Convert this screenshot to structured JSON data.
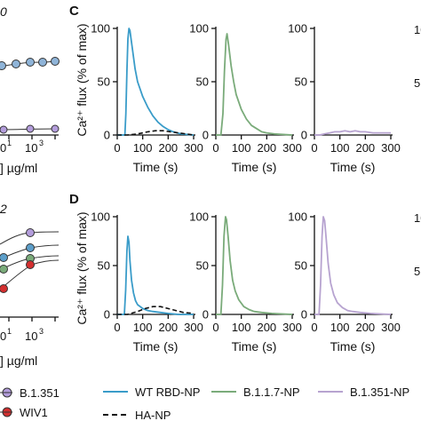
{
  "panel_letters": [
    "C",
    "D"
  ],
  "left_fragments": {
    "top_title_fragment": "0",
    "top_units": "] µg/ml",
    "bottom_title_fragment": "2",
    "bottom_units": "] µg/ml",
    "top_x_ticks": [
      "0",
      "1",
      "10",
      "3"
    ],
    "bottom_x_ticks": [
      "0",
      "1",
      "10",
      "3"
    ]
  },
  "left_legend": [
    {
      "label": "B.1.351",
      "marker": "circle",
      "color": "#b39ddb"
    },
    {
      "label": "WIV1",
      "marker": "circle",
      "color": "#d32f2f"
    }
  ],
  "right_edge_fragments": [
    "10",
    "5",
    "10",
    "5"
  ],
  "colors": {
    "wt": "#3a9cc9",
    "b117": "#7aab7a",
    "b1351": "#b7a3d0",
    "ha": "#111111",
    "axis": "#111111"
  },
  "chart_data": [
    {
      "panel": "C",
      "type": "line",
      "ylabel": "Ca²⁺ flux (% of max)",
      "xlabel": "Time (s)",
      "x_ticks": [
        0,
        100,
        200,
        300
      ],
      "y_ticks": [
        0,
        50,
        100
      ],
      "xlim": [
        0,
        300
      ],
      "ylim": [
        0,
        100
      ],
      "series": [
        {
          "name": "WT RBD-NP",
          "color_key": "wt",
          "x": [
            0,
            30,
            34,
            38,
            42,
            46,
            50,
            60,
            70,
            80,
            100,
            120,
            140,
            160,
            180,
            200,
            220,
            250,
            300
          ],
          "y": [
            0,
            0,
            20,
            60,
            90,
            100,
            98,
            80,
            62,
            50,
            36,
            26,
            18,
            12,
            8,
            5,
            3,
            1,
            0
          ]
        },
        {
          "name": "HA-NP",
          "color_key": "ha",
          "dash": true,
          "x": [
            0,
            40,
            80,
            120,
            150,
            180,
            210,
            240,
            270,
            300
          ],
          "y": [
            0,
            0,
            1,
            3,
            4,
            4,
            3,
            2,
            1,
            0
          ]
        }
      ]
    },
    {
      "panel": "C",
      "type": "line",
      "xlabel": "Time (s)",
      "x_ticks": [
        0,
        100,
        200,
        300
      ],
      "y_ticks": [
        0,
        50,
        100
      ],
      "xlim": [
        0,
        300
      ],
      "ylim": [
        0,
        100
      ],
      "series": [
        {
          "name": "B.1.1.7-NP",
          "color_key": "b117",
          "x": [
            0,
            20,
            28,
            34,
            40,
            44,
            50,
            60,
            70,
            80,
            100,
            120,
            140,
            160,
            180,
            200,
            230,
            300
          ],
          "y": [
            0,
            0,
            20,
            60,
            90,
            95,
            85,
            65,
            50,
            38,
            24,
            15,
            9,
            6,
            3,
            2,
            1,
            0
          ]
        }
      ]
    },
    {
      "panel": "C",
      "type": "line",
      "xlabel": "Time (s)",
      "x_ticks": [
        0,
        100,
        200,
        300
      ],
      "y_ticks": [
        0,
        50,
        100
      ],
      "xlim": [
        0,
        300
      ],
      "ylim": [
        0,
        100
      ],
      "series": [
        {
          "name": "B.1.351-NP",
          "color_key": "b1351",
          "x": [
            0,
            20,
            40,
            60,
            80,
            100,
            120,
            140,
            160,
            180,
            200,
            230,
            260,
            300
          ],
          "y": [
            0,
            0,
            1,
            2,
            3,
            3,
            4,
            3,
            4,
            3,
            3,
            2,
            2,
            2
          ]
        }
      ]
    },
    {
      "panel": "D",
      "type": "line",
      "ylabel": "Ca²⁺ flux (% of max)",
      "xlabel": "Time (s)",
      "x_ticks": [
        0,
        100,
        200,
        300
      ],
      "y_ticks": [
        0,
        50,
        100
      ],
      "xlim": [
        0,
        300
      ],
      "ylim": [
        0,
        100
      ],
      "series": [
        {
          "name": "WT RBD-NP",
          "color_key": "wt",
          "x": [
            0,
            28,
            33,
            38,
            42,
            46,
            50,
            56,
            64,
            72,
            80,
            100,
            120,
            140,
            170,
            200,
            240,
            300
          ],
          "y": [
            0,
            0,
            25,
            65,
            80,
            74,
            55,
            35,
            22,
            14,
            10,
            6,
            4,
            3,
            2,
            1,
            0,
            0
          ]
        },
        {
          "name": "HA-NP",
          "color_key": "ha",
          "dash": true,
          "x": [
            0,
            40,
            80,
            110,
            140,
            170,
            200,
            230,
            260,
            300
          ],
          "y": [
            0,
            0,
            3,
            6,
            8,
            8,
            6,
            4,
            2,
            1
          ]
        }
      ]
    },
    {
      "panel": "D",
      "type": "line",
      "xlabel": "Time (s)",
      "x_ticks": [
        0,
        100,
        200,
        300
      ],
      "y_ticks": [
        0,
        50,
        100
      ],
      "xlim": [
        0,
        300
      ],
      "ylim": [
        0,
        100
      ],
      "series": [
        {
          "name": "B.1.1.7-NP",
          "color_key": "b117",
          "x": [
            0,
            20,
            26,
            32,
            38,
            42,
            48,
            56,
            66,
            76,
            90,
            110,
            130,
            150,
            180,
            220,
            300
          ],
          "y": [
            0,
            0,
            30,
            80,
            100,
            97,
            80,
            55,
            35,
            24,
            15,
            8,
            5,
            3,
            2,
            1,
            0
          ]
        }
      ]
    },
    {
      "panel": "D",
      "type": "line",
      "xlabel": "Time (s)",
      "x_ticks": [
        0,
        100,
        200,
        300
      ],
      "y_ticks": [
        0,
        50,
        100
      ],
      "xlim": [
        0,
        300
      ],
      "ylim": [
        0,
        100
      ],
      "series": [
        {
          "name": "B.1.351-NP",
          "color_key": "b1351",
          "x": [
            0,
            18,
            24,
            30,
            35,
            40,
            46,
            54,
            64,
            76,
            90,
            110,
            130,
            150,
            180,
            220,
            300
          ],
          "y": [
            0,
            0,
            30,
            80,
            100,
            96,
            78,
            52,
            32,
            20,
            12,
            7,
            4,
            3,
            2,
            1,
            0
          ]
        }
      ]
    }
  ],
  "legend": [
    {
      "label": "WT RBD-NP",
      "color_key": "wt",
      "dash": false
    },
    {
      "label": "B.1.1.7-NP",
      "color_key": "b117",
      "dash": false
    },
    {
      "label": "B.1.351-NP",
      "color_key": "b1351",
      "dash": false
    },
    {
      "label": "HA-NP",
      "color_key": "ha",
      "dash": true
    }
  ]
}
